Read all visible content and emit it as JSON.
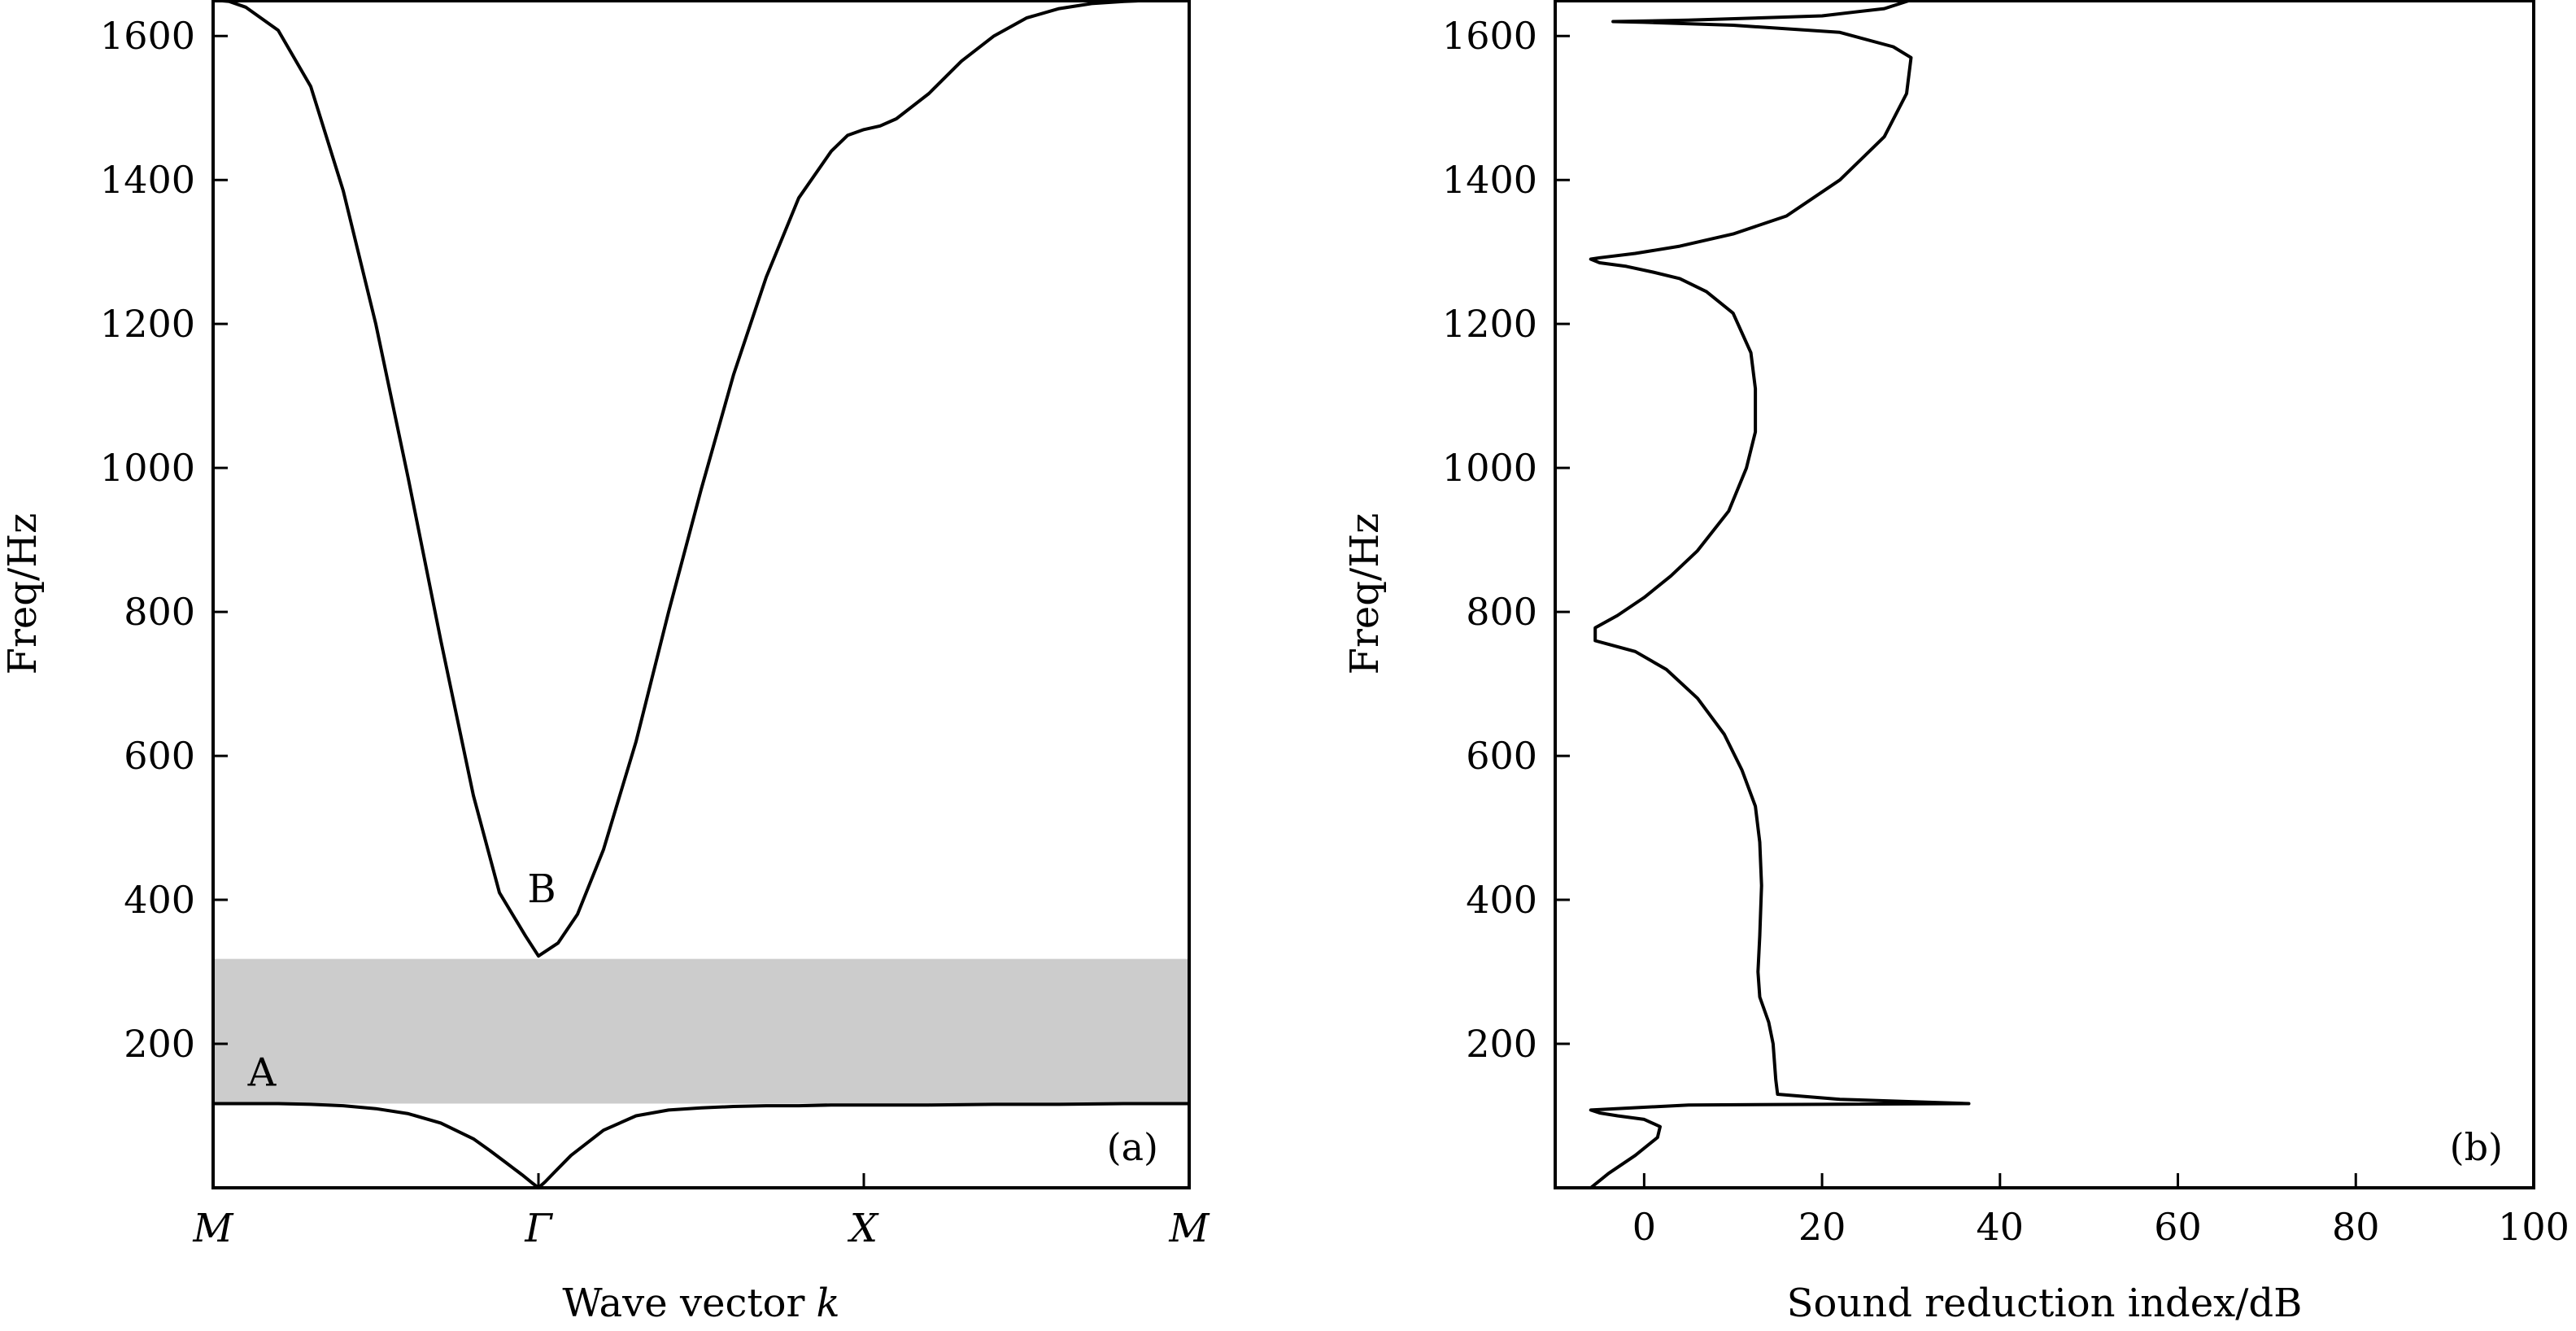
{
  "chart_data": [
    {
      "type": "line",
      "panel_label": "(a)",
      "xlabel": "Wave vector",
      "xlabel_symbol": "k",
      "ylabel": "Freq/Hz",
      "ylim": [
        0,
        1650
      ],
      "yticks": [
        200,
        400,
        600,
        800,
        1000,
        1200,
        1400,
        1600
      ],
      "x_positions": [
        0,
        1,
        2,
        3
      ],
      "x_ticklabels": [
        "M",
        "Γ",
        "X",
        "M"
      ],
      "grid": false,
      "band_gap": {
        "from": 117,
        "to": 318,
        "color": "#cccccc"
      },
      "annotations": [
        {
          "text": "A",
          "x": 0.15,
          "y": 160
        },
        {
          "text": "B",
          "x": 1.01,
          "y": 415
        }
      ],
      "series": [
        {
          "x": [
            0,
            0.1,
            0.2,
            0.3,
            0.4,
            0.5,
            0.6,
            0.7,
            0.8,
            0.85,
            0.9,
            0.95,
            0.98,
            1.0,
            1.02,
            1.05,
            1.1,
            1.2,
            1.3,
            1.4,
            1.5,
            1.6,
            1.7,
            1.8,
            1.9,
            2.0,
            2.1,
            2.2,
            2.4,
            2.6,
            2.8,
            3.0
          ],
          "y": [
            117,
            117,
            117,
            116,
            114,
            110,
            103,
            90,
            68,
            52,
            35,
            18,
            7,
            0,
            8,
            22,
            45,
            80,
            100,
            108,
            111,
            113,
            114,
            114,
            115,
            115,
            115,
            115,
            116,
            116,
            117,
            117
          ]
        },
        {
          "x": [
            0,
            0.05,
            0.1,
            0.2,
            0.3,
            0.4,
            0.5,
            0.6,
            0.7,
            0.8,
            0.88,
            0.96,
            1.0,
            1.06,
            1.12,
            1.2,
            1.3,
            1.4,
            1.5,
            1.6,
            1.7,
            1.8,
            1.9,
            1.95,
            2.0,
            2.05,
            2.1,
            2.2,
            2.3,
            2.4,
            2.5,
            2.6,
            2.7,
            2.8,
            2.9,
            3.0
          ],
          "y": [
            1650,
            1648,
            1640,
            1608,
            1530,
            1385,
            1200,
            985,
            760,
            545,
            410,
            350,
            322,
            340,
            380,
            470,
            620,
            800,
            970,
            1130,
            1265,
            1375,
            1440,
            1462,
            1470,
            1475,
            1485,
            1520,
            1565,
            1600,
            1625,
            1638,
            1645,
            1648,
            1650,
            1651
          ]
        }
      ]
    },
    {
      "type": "line",
      "panel_label": "(b)",
      "xlabel": "Sound reduction index/dB",
      "ylabel": "Freq/Hz",
      "xlim": [
        -10,
        100
      ],
      "xticks": [
        0,
        20,
        40,
        60,
        80,
        100
      ],
      "ylim": [
        0,
        1650
      ],
      "yticks": [
        200,
        400,
        600,
        800,
        1000,
        1200,
        1400,
        1600
      ],
      "grid": false,
      "series": [
        {
          "x": [
            -6,
            -4,
            -1,
            1.5,
            1.8,
            0,
            -3,
            -5,
            -6,
            5,
            20,
            36.5,
            22,
            15,
            14.8,
            14.5,
            14,
            13,
            12.8,
            13,
            13.2,
            13,
            12.5,
            11,
            9,
            6,
            2.5,
            -1,
            -4,
            -5.5,
            -5.5,
            -3,
            0,
            3,
            6,
            9.5,
            11.5,
            12.5,
            12.5,
            12,
            10,
            7,
            4,
            1,
            -2,
            -5,
            -6,
            -5,
            -1,
            4,
            10,
            16,
            22,
            27,
            29.5,
            30,
            28,
            22,
            10,
            0,
            -3.5,
            5,
            20,
            27,
            30
          ],
          "y": [
            0,
            20,
            45,
            70,
            85,
            95,
            100,
            104,
            108,
            115,
            116,
            117,
            123,
            130,
            150,
            200,
            230,
            265,
            300,
            350,
            420,
            480,
            530,
            580,
            630,
            680,
            720,
            745,
            755,
            760,
            778,
            795,
            820,
            850,
            885,
            940,
            1000,
            1050,
            1110,
            1160,
            1215,
            1245,
            1263,
            1272,
            1280,
            1285,
            1290,
            1292,
            1298,
            1308,
            1325,
            1350,
            1400,
            1460,
            1520,
            1570,
            1585,
            1605,
            1615,
            1619,
            1620,
            1622,
            1628,
            1638,
            1650
          ]
        }
      ]
    }
  ]
}
